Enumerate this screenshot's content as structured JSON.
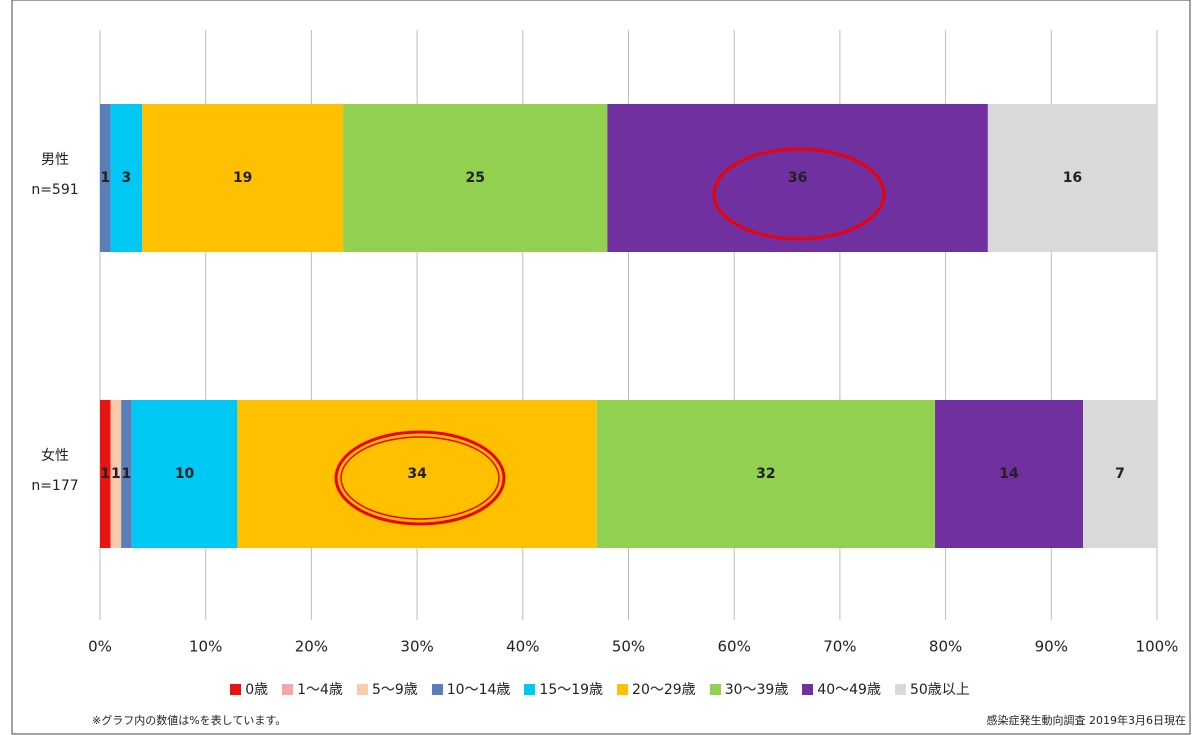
{
  "chart_data": {
    "type": "stacked_barh",
    "categories": [
      "男性",
      "女性"
    ],
    "category_notes": [
      "n=591",
      "n=177"
    ],
    "series": [
      {
        "name": "0歳",
        "color": "#e81414",
        "label_color": "#ffffff",
        "values": [
          0,
          1
        ]
      },
      {
        "name": "1～4歳",
        "color": "#f4a6a6",
        "label_color": "#222222",
        "values": [
          0,
          0
        ]
      },
      {
        "name": "5～9歳",
        "color": "#f8cbad",
        "label_color": "#222222",
        "values": [
          0,
          1
        ]
      },
      {
        "name": "10～14歳",
        "color": "#5a7fb8",
        "label_color": "#ffffff",
        "values": [
          1,
          1
        ]
      },
      {
        "name": "15～19歳",
        "color": "#00c8f5",
        "label_color": "#222222",
        "values": [
          3,
          10
        ]
      },
      {
        "name": "20～29歳",
        "color": "#ffc000",
        "label_color": "#222222",
        "values": [
          19,
          34
        ]
      },
      {
        "name": "30～39歳",
        "color": "#92d050",
        "label_color": "#222222",
        "values": [
          25,
          32
        ]
      },
      {
        "name": "40～49歳",
        "color": "#7030a0",
        "label_color": "#ffffff",
        "values": [
          36,
          14
        ]
      },
      {
        "name": "50歳以上",
        "color": "#d9d9d9",
        "label_color": "#222222",
        "values": [
          16,
          7
        ]
      }
    ],
    "xlim": [
      0,
      100
    ],
    "xticks": [
      {
        "value": 0,
        "label": "0%"
      },
      {
        "value": 10,
        "label": "10%"
      },
      {
        "value": 20,
        "label": "20%"
      },
      {
        "value": 30,
        "label": "30%"
      },
      {
        "value": 40,
        "label": "40%"
      },
      {
        "value": 50,
        "label": "50%"
      },
      {
        "value": 60,
        "label": "60%"
      },
      {
        "value": 70,
        "label": "70%"
      },
      {
        "value": 80,
        "label": "80%"
      },
      {
        "value": 90,
        "label": "90%"
      },
      {
        "value": 100,
        "label": "100%"
      }
    ],
    "grid": true,
    "legend": "bottom",
    "annotations": [
      "※グラフ内の数値は%を表しています。",
      "感染症発生動向調査 2019年3月6日現在"
    ]
  }
}
